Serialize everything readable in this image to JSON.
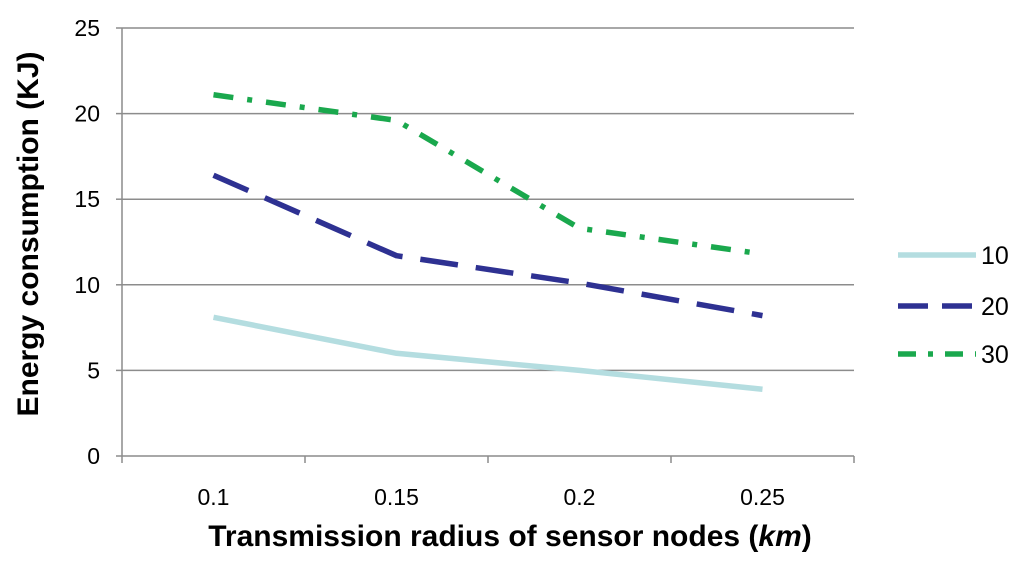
{
  "chart_data": {
    "type": "line",
    "title": "",
    "xlabel_main": "Transmission radius of sensor nodes (",
    "xlabel_unit": "km",
    "xlabel_close": ")",
    "ylabel": "Energy consumption (KJ)",
    "categories": [
      "0.1",
      "0.15",
      "0.2",
      "0.25"
    ],
    "ylim": [
      0,
      25
    ],
    "yticks": [
      "0",
      "5",
      "10",
      "15",
      "20",
      "25"
    ],
    "grid": true,
    "legend_position": "right",
    "series": [
      {
        "name": "10",
        "values": [
          8.1,
          6.0,
          5.0,
          3.9
        ],
        "color": "#b4dde0",
        "dash": "solid"
      },
      {
        "name": "20",
        "values": [
          16.4,
          11.7,
          10.1,
          8.2
        ],
        "color": "#2e3192",
        "dash": "long-dash"
      },
      {
        "name": "30",
        "values": [
          21.1,
          19.6,
          13.3,
          11.8
        ],
        "color": "#1aa84d",
        "dash": "dash-dot"
      }
    ]
  }
}
